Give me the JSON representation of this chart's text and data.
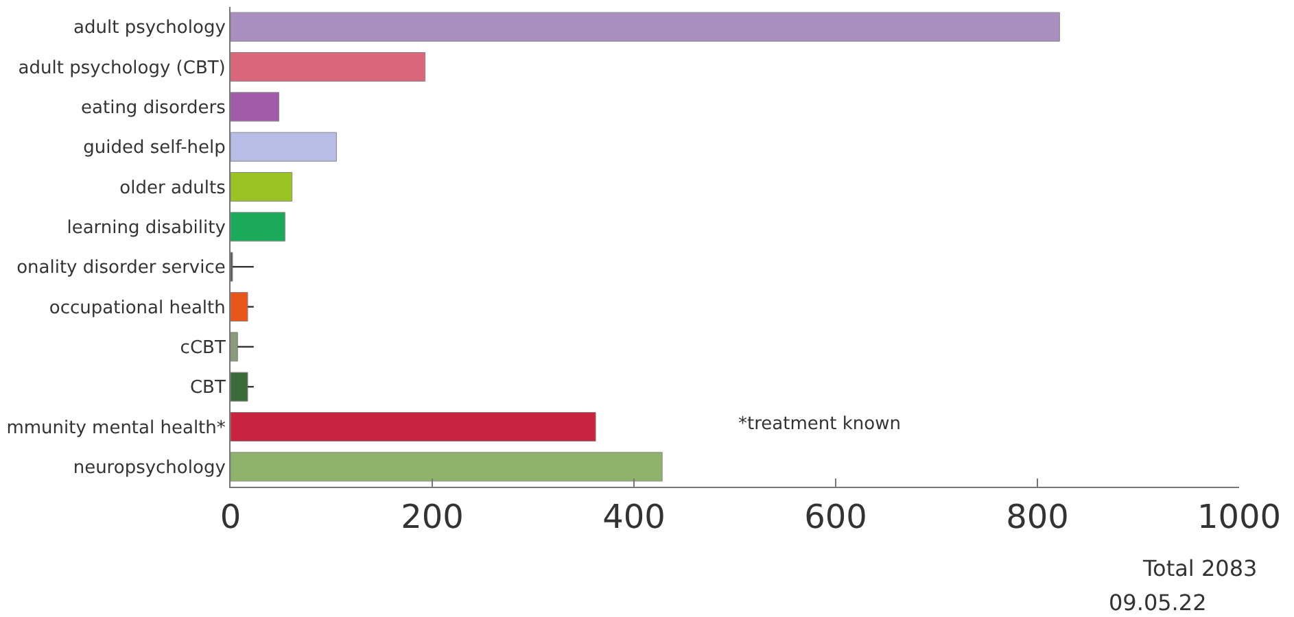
{
  "chart_data": {
    "type": "bar",
    "orientation": "horizontal",
    "categories": [
      "adult psychology",
      "adult psychology (CBT)",
      "eating disorders",
      "guided self-help",
      "older adults",
      "learning disability",
      "onality disorder service",
      "occupational health",
      "cCBT",
      "CBT",
      "mmunity mental health*",
      "neuropsychology"
    ],
    "values": [
      822,
      193,
      48,
      105,
      61,
      54,
      2,
      17,
      7,
      17,
      362,
      428
    ],
    "errors": [
      null,
      null,
      null,
      null,
      null,
      null,
      [
        2,
        23
      ],
      [
        17,
        23
      ],
      [
        7,
        23
      ],
      [
        17,
        23
      ],
      null,
      null
    ],
    "colors": [
      "#a98fc0",
      "#d9667a",
      "#a05ca8",
      "#b8bde6",
      "#99c424",
      "#1aaa5a",
      "#555555",
      "#e8561a",
      "#8a9a7a",
      "#3a6b3a",
      "#c8243f",
      "#8fb36a"
    ],
    "xlim": [
      0,
      1000
    ],
    "xticks": [
      0,
      200,
      400,
      600,
      800,
      1000
    ],
    "annotations": [
      "*treatment known",
      "Total 2083",
      "09.05.22"
    ]
  }
}
